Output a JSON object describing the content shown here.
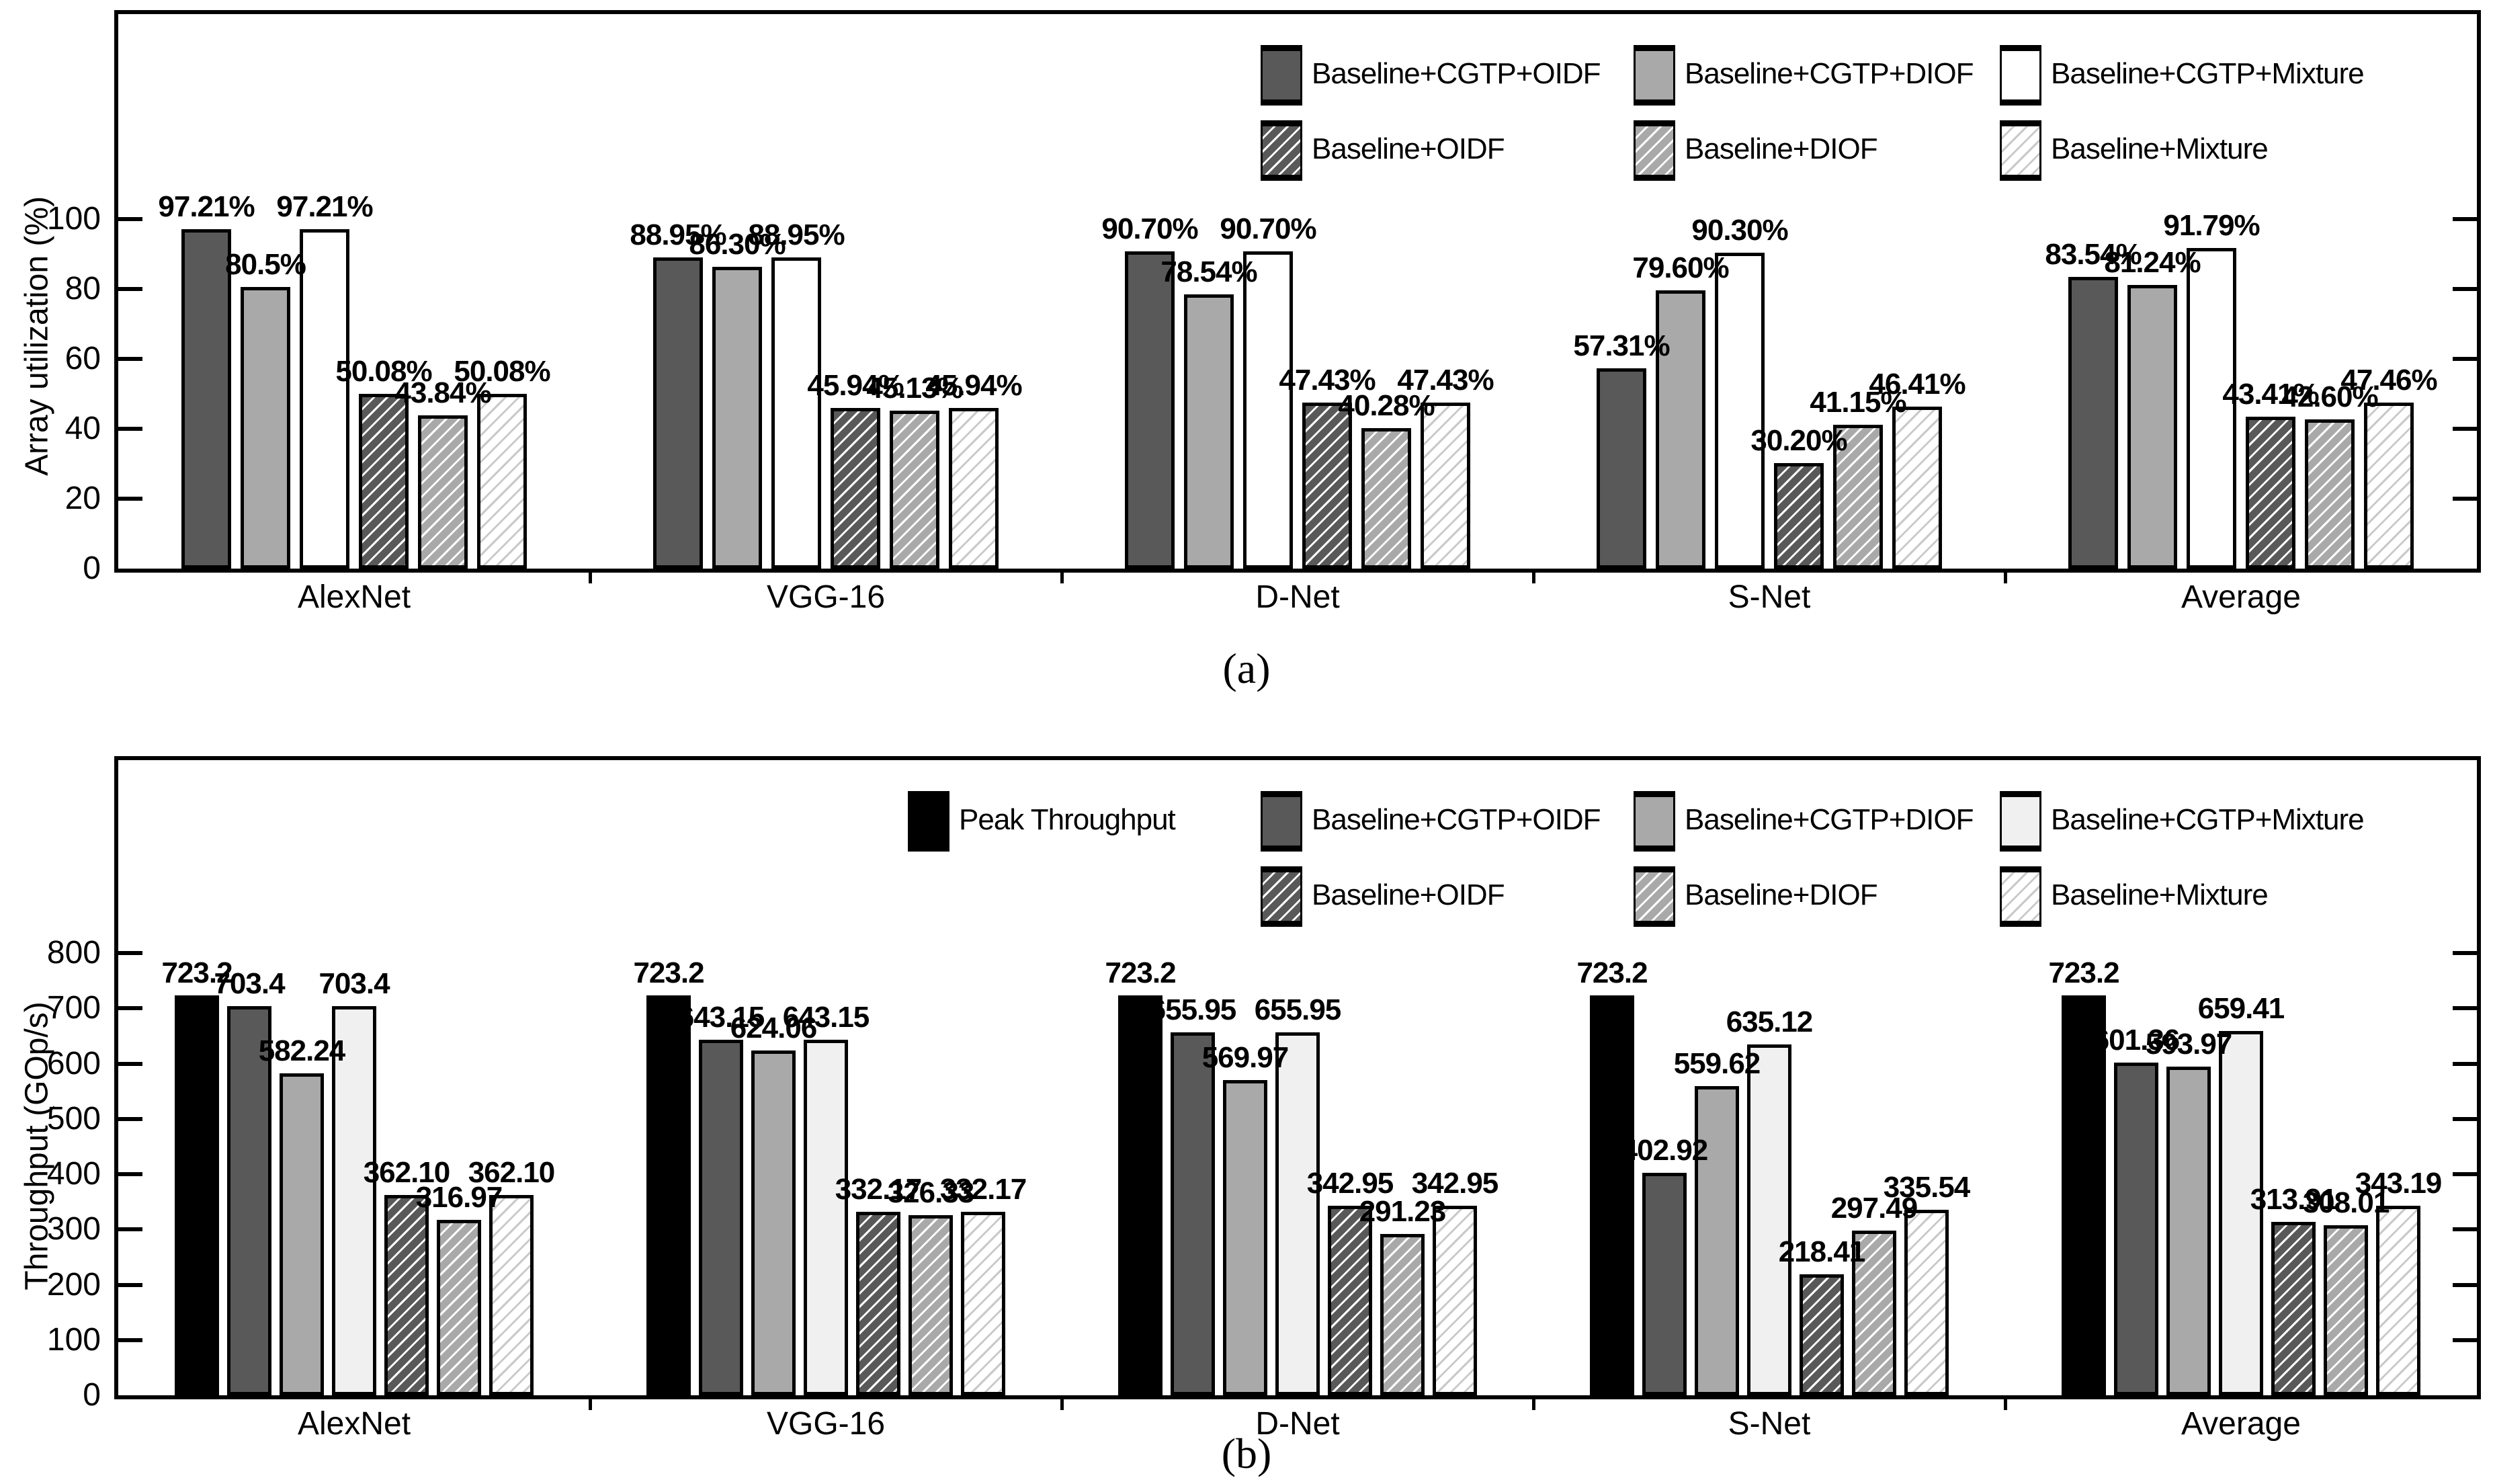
{
  "figure": {
    "caption_a": "(a)",
    "caption_b": "(b)"
  },
  "colors": {
    "black": "#000000",
    "dark_gray": "#595959",
    "medium_gray": "#a9a9a9",
    "white": "#ffffff",
    "light_gray_fill": "#f0f0f0",
    "light_hatch_line": "#c9c9c9",
    "bar_outline": "#000000"
  },
  "chart_data": [
    {
      "type": "bar",
      "panel": "a",
      "caption": "(a)",
      "title": "",
      "xlabel": "",
      "ylabel": "Array utilization (%)",
      "yticks": [
        0,
        20,
        40,
        60,
        80,
        100
      ],
      "ylim": [
        0,
        158
      ],
      "grid": false,
      "legend_position": "top-right-inside",
      "categories": [
        "AlexNet",
        "VGG-16",
        "D-Net",
        "S-Net",
        "Average"
      ],
      "series": [
        {
          "name": "Baseline+CGTP+OIDF",
          "style": "dark-solid",
          "values": [
            97.21,
            88.95,
            90.7,
            57.31,
            83.54
          ],
          "labels": [
            "97.21%",
            "88.95%",
            "90.70%",
            "57.31%",
            "83.54%"
          ]
        },
        {
          "name": "Baseline+CGTP+DIOF",
          "style": "gray-solid",
          "values": [
            80.5,
            86.3,
            78.54,
            79.6,
            81.24
          ],
          "labels": [
            "80.5%",
            "86.30%",
            "78.54%",
            "79.60%",
            "81.24%"
          ]
        },
        {
          "name": "Baseline+CGTP+Mixture",
          "style": "white-solid",
          "values": [
            97.21,
            88.95,
            90.7,
            90.3,
            91.79
          ],
          "labels": [
            "97.21%",
            "88.95%",
            "90.70%",
            "90.30%",
            "91.79%"
          ]
        },
        {
          "name": "Baseline+OIDF",
          "style": "dark-hatch",
          "values": [
            50.08,
            45.94,
            47.43,
            30.2,
            43.41
          ],
          "labels": [
            "50.08%",
            "45.94%",
            "47.43%",
            "30.20%",
            "43.41%"
          ]
        },
        {
          "name": "Baseline+DIOF",
          "style": "gray-hatch",
          "values": [
            43.84,
            45.13,
            40.28,
            41.15,
            42.6
          ],
          "labels": [
            "43.84%",
            "45.13%",
            "40.28%",
            "41.15%",
            "42.60%"
          ]
        },
        {
          "name": "Baseline+Mixture",
          "style": "light-hatch",
          "values": [
            50.08,
            45.94,
            47.43,
            46.41,
            47.46
          ],
          "labels": [
            "50.08%",
            "45.94%",
            "47.43%",
            "46.41%",
            "47.46%"
          ]
        }
      ]
    },
    {
      "type": "bar",
      "panel": "b",
      "caption": "(b)",
      "title": "",
      "xlabel": "",
      "ylabel": "Throughput (GOp/s)",
      "yticks": [
        0,
        100,
        200,
        300,
        400,
        500,
        600,
        700,
        800
      ],
      "ylim": [
        0,
        1145
      ],
      "grid": false,
      "legend_position": "top-right-inside",
      "categories": [
        "AlexNet",
        "VGG-16",
        "D-Net",
        "S-Net",
        "Average"
      ],
      "series": [
        {
          "name": "Peak Throughput",
          "style": "black-solid",
          "values": [
            723.2,
            723.2,
            723.2,
            723.2,
            723.2
          ],
          "labels": [
            "723.2",
            "723.2",
            "723.2",
            "723.2",
            "723.2"
          ]
        },
        {
          "name": "Baseline+CGTP+OIDF",
          "style": "dark-solid",
          "values": [
            703.4,
            643.15,
            655.95,
            402.92,
            601.36
          ],
          "labels": [
            "703.4",
            "643.15",
            "655.95",
            "402.92",
            "601.36"
          ]
        },
        {
          "name": "Baseline+CGTP+DIOF",
          "style": "gray-solid",
          "values": [
            582.24,
            624.06,
            569.97,
            559.62,
            593.97
          ],
          "labels": [
            "582.24",
            "624.06",
            "569.97",
            "559.62",
            "593.97"
          ]
        },
        {
          "name": "Baseline+CGTP+Mixture",
          "style": "lightgray-solid",
          "values": [
            703.4,
            643.15,
            655.95,
            635.12,
            659.41
          ],
          "labels": [
            "703.4",
            "643.15",
            "655.95",
            "635.12",
            "659.41"
          ]
        },
        {
          "name": "Baseline+OIDF",
          "style": "dark-hatch",
          "values": [
            362.1,
            332.17,
            342.95,
            218.41,
            313.91
          ],
          "labels": [
            "362.10",
            "332.17",
            "342.95",
            "218.41",
            "313.91"
          ]
        },
        {
          "name": "Baseline+DIOF",
          "style": "gray-hatch",
          "values": [
            316.97,
            326.33,
            291.23,
            297.49,
            308.01
          ],
          "labels": [
            "316.97",
            "326.33",
            "291.23",
            "297.49",
            "308.01"
          ]
        },
        {
          "name": "Baseline+Mixture",
          "style": "light-hatch",
          "values": [
            362.1,
            332.17,
            342.95,
            335.54,
            343.19
          ],
          "labels": [
            "362.10",
            "332.17",
            "342.95",
            "335.54",
            "343.19"
          ]
        }
      ]
    }
  ]
}
